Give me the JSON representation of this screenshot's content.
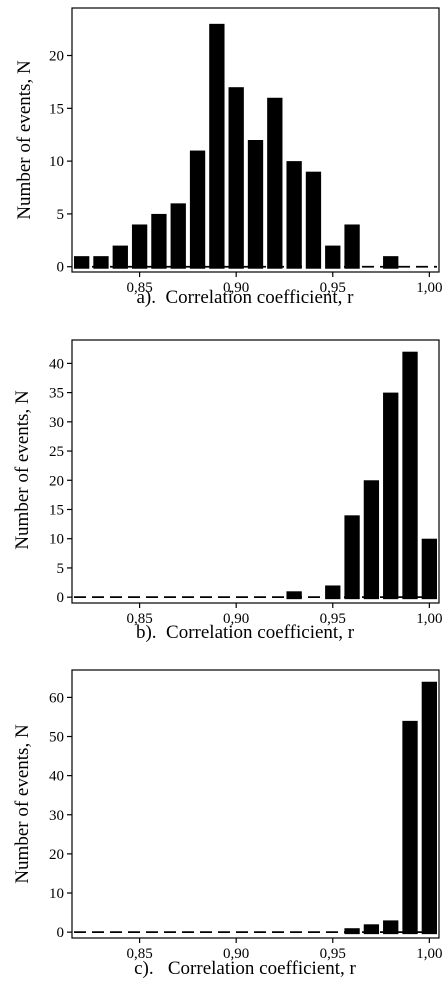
{
  "chart_data": [
    {
      "type": "bar",
      "caption": "a).  Correlation coefficient, r",
      "ylabel": "Number of events, N",
      "xlim": [
        0.815,
        1.005
      ],
      "ylim": [
        -0.5,
        24.5
      ],
      "xticks": [
        0.85,
        0.9,
        0.95,
        1.0
      ],
      "xtick_labels": [
        "0,85",
        "0,90",
        "0,95",
        "1,00"
      ],
      "yticks": [
        0,
        5,
        10,
        15,
        20
      ],
      "ytick_labels": [
        "0",
        "5",
        "10",
        "15",
        "20"
      ],
      "bin_width": 0.01,
      "x": [
        0.82,
        0.83,
        0.84,
        0.85,
        0.86,
        0.87,
        0.88,
        0.89,
        0.9,
        0.91,
        0.92,
        0.93,
        0.94,
        0.95,
        0.96,
        0.97,
        0.98,
        0.99,
        1.0
      ],
      "values": [
        1,
        1,
        2,
        4,
        5,
        6,
        11,
        23,
        17,
        12,
        16,
        10,
        9,
        2,
        4,
        0,
        1,
        0,
        0
      ]
    },
    {
      "type": "bar",
      "caption": "b).  Correlation coefficient, r",
      "ylabel": "Number of events, N",
      "xlim": [
        0.815,
        1.005
      ],
      "ylim": [
        -1,
        44
      ],
      "xticks": [
        0.85,
        0.9,
        0.95,
        1.0
      ],
      "xtick_labels": [
        "0,85",
        "0,90",
        "0,95",
        "1,00"
      ],
      "yticks": [
        0,
        5,
        10,
        15,
        20,
        25,
        30,
        35,
        40
      ],
      "ytick_labels": [
        "0",
        "5",
        "10",
        "15",
        "20",
        "25",
        "30",
        "35",
        "40"
      ],
      "bin_width": 0.01,
      "x": [
        0.82,
        0.83,
        0.84,
        0.85,
        0.86,
        0.87,
        0.88,
        0.89,
        0.9,
        0.91,
        0.92,
        0.93,
        0.94,
        0.95,
        0.96,
        0.97,
        0.98,
        0.99,
        1.0
      ],
      "values": [
        0,
        0,
        0,
        0,
        0,
        0,
        0,
        0,
        0,
        0,
        0,
        1,
        0,
        2,
        14,
        20,
        35,
        42,
        10
      ]
    },
    {
      "type": "bar",
      "caption": "c).   Correlation coefficient, r",
      "ylabel": "Number of events, N",
      "xlim": [
        0.815,
        1.005
      ],
      "ylim": [
        -1.5,
        67
      ],
      "xticks": [
        0.85,
        0.9,
        0.95,
        1.0
      ],
      "xtick_labels": [
        "0,85",
        "0,90",
        "0,95",
        "1,00"
      ],
      "yticks": [
        0,
        10,
        20,
        30,
        40,
        50,
        60
      ],
      "ytick_labels": [
        "0",
        "10",
        "20",
        "30",
        "40",
        "50",
        "60"
      ],
      "bin_width": 0.01,
      "x": [
        0.82,
        0.83,
        0.84,
        0.85,
        0.86,
        0.87,
        0.88,
        0.89,
        0.9,
        0.91,
        0.92,
        0.93,
        0.94,
        0.95,
        0.96,
        0.97,
        0.98,
        0.99,
        1.0
      ],
      "values": [
        0,
        0,
        0,
        0,
        0,
        0,
        0,
        0,
        0,
        0,
        0,
        0,
        0,
        0,
        1,
        2,
        3,
        54,
        64
      ]
    }
  ]
}
